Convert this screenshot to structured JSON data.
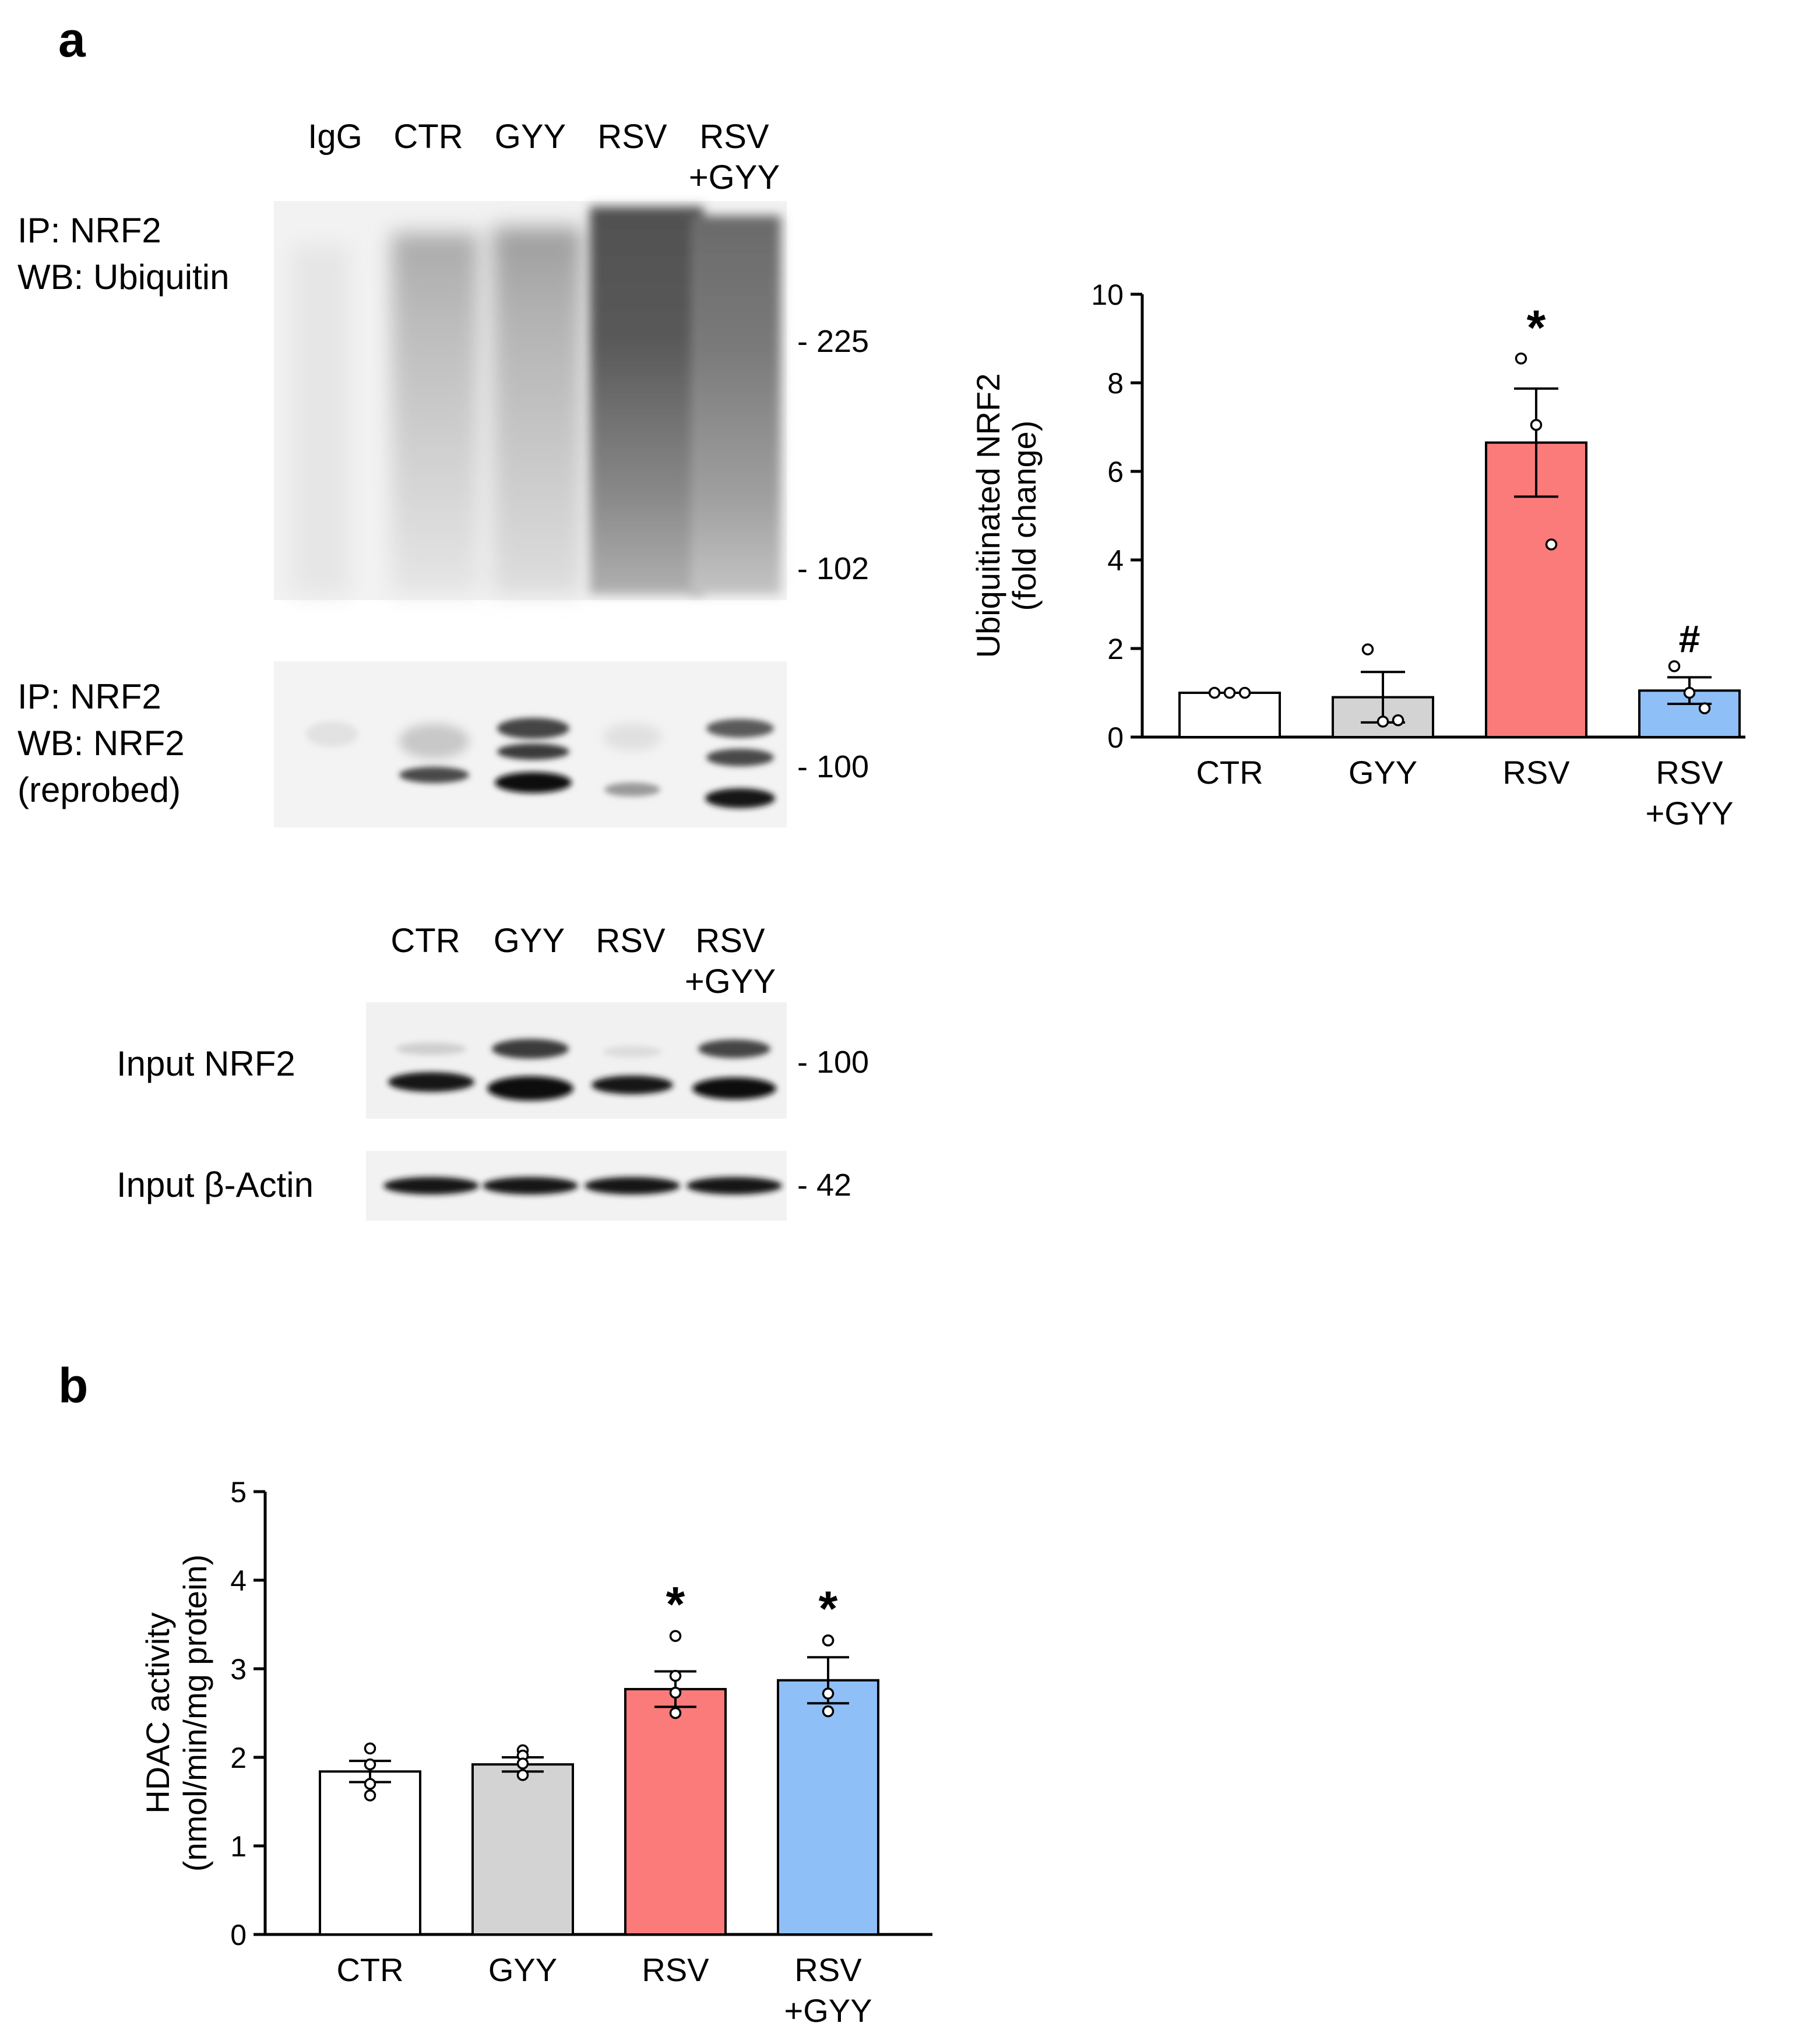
{
  "panel_a": {
    "letter": "a",
    "ip_lanes": [
      "IgG",
      "CTR",
      "GYY",
      "RSV",
      "RSV\n+GYY"
    ],
    "blot1_label": [
      "IP: NRF2",
      "WB: Ubiquitin"
    ],
    "blot1_markers": [
      "- 225",
      "- 102"
    ],
    "blot2_label": [
      "IP: NRF2",
      "WB: NRF2",
      "(reprobed)"
    ],
    "blot2_markers": [
      "- 100"
    ],
    "input_lanes": [
      "CTR",
      "GYY",
      "RSV",
      "RSV\n+GYY"
    ],
    "input_nrf2_label": "Input NRF2",
    "input_nrf2_marker": "- 100",
    "input_actin_label": "Input β-Actin",
    "input_actin_marker": "- 42"
  },
  "panel_b": {
    "letter": "b"
  },
  "chart_data": [
    {
      "type": "bar",
      "panel": "a",
      "categories": [
        "CTR",
        "GYY",
        "RSV",
        "RSV\n+GYY"
      ],
      "values": [
        1.0,
        0.9,
        6.65,
        1.05
      ],
      "sem": [
        0.0,
        0.57,
        1.22,
        0.3
      ],
      "points": [
        [
          1.0,
          1.0,
          1.0
        ],
        [
          1.98,
          0.35,
          0.38
        ],
        [
          8.55,
          7.05,
          4.35
        ],
        [
          1.6,
          1.0,
          0.65
        ]
      ],
      "annotations": [
        "",
        "",
        "*",
        "#"
      ],
      "colors": [
        "#ffffff",
        "#d3d3d3",
        "#fb7b7b",
        "#8fbff7"
      ],
      "ylabel": "Ubiquitinated NRF2\n(fold change)",
      "ylim": [
        0,
        10
      ],
      "yticks": [
        0,
        2,
        4,
        6,
        8,
        10
      ],
      "grid": false
    },
    {
      "type": "bar",
      "panel": "b",
      "categories": [
        "CTR",
        "GYY",
        "RSV",
        "RSV\n+GYY"
      ],
      "values": [
        1.84,
        1.92,
        2.77,
        2.87
      ],
      "sem": [
        0.12,
        0.08,
        0.2,
        0.26
      ],
      "points": [
        [
          2.1,
          1.92,
          1.7,
          1.57
        ],
        [
          2.08,
          2.02,
          1.93,
          1.8
        ],
        [
          3.37,
          2.92,
          2.73,
          2.5
        ],
        [
          3.32,
          3.32,
          2.72,
          2.52
        ]
      ],
      "annotations": [
        "",
        "",
        "*",
        "*"
      ],
      "colors": [
        "#ffffff",
        "#d3d3d3",
        "#fb7b7b",
        "#8fbff7"
      ],
      "ylabel": "HDAC activity\n(nmol/min/mg protein)",
      "ylim": [
        0,
        5
      ],
      "yticks": [
        0,
        1,
        2,
        3,
        4,
        5
      ],
      "grid": false
    }
  ]
}
